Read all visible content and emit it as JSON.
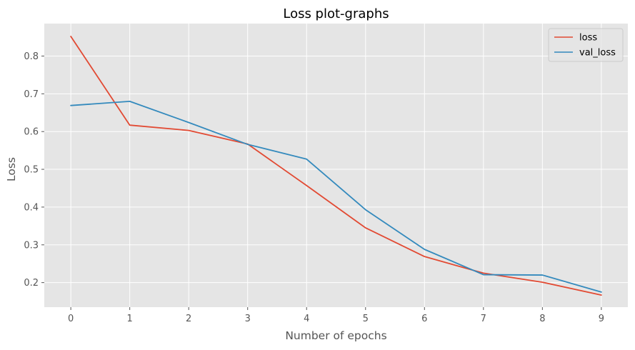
{
  "chart_data": {
    "type": "line",
    "title": "Loss plot-graphs",
    "xlabel": "Number of epochs",
    "ylabel": "Loss",
    "x": [
      0,
      1,
      2,
      3,
      4,
      5,
      6,
      7,
      8,
      9
    ],
    "xlim": [
      -0.45,
      9.45
    ],
    "ylim": [
      0.135,
      0.886
    ],
    "xticks": [
      "0",
      "1",
      "2",
      "3",
      "4",
      "5",
      "6",
      "7",
      "8",
      "9"
    ],
    "yticks": [
      "0.2",
      "0.3",
      "0.4",
      "0.5",
      "0.6",
      "0.7",
      "0.8"
    ],
    "grid": true,
    "legend_position": "top-right",
    "background_color": "#E5E5E5",
    "series": [
      {
        "name": "loss",
        "color": "#E24A33",
        "values": [
          0.852,
          0.617,
          0.603,
          0.567,
          0.457,
          0.345,
          0.269,
          0.225,
          0.201,
          0.167
        ]
      },
      {
        "name": "val_loss",
        "color": "#348ABD",
        "values": [
          0.669,
          0.68,
          0.624,
          0.566,
          0.527,
          0.393,
          0.288,
          0.221,
          0.22,
          0.175
        ]
      }
    ]
  }
}
